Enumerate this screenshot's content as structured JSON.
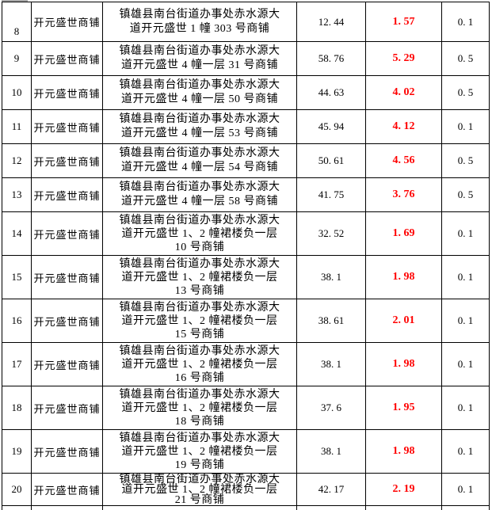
{
  "colors": {
    "price_red": "#ff0000",
    "border_black": "#000000",
    "artifact_grey": "#a9a9a9"
  },
  "table": {
    "shop_name": "开元盛世商铺",
    "rows": [
      {
        "no": "8",
        "address_lines": [
          "镇雄县南台街道办事处赤水源大",
          "道开元盛世 1 幢 303 号商铺"
        ],
        "area": "12. 44",
        "price": "1. 57",
        "rate": "0. 1"
      },
      {
        "no": "9",
        "address_lines": [
          "镇雄县南台街道办事处赤水源大",
          "道开元盛世 4 幢一层 31 号商铺"
        ],
        "area": "58. 76",
        "price": "5. 29",
        "rate": "0. 5"
      },
      {
        "no": "10",
        "address_lines": [
          "镇雄县南台街道办事处赤水源大",
          "道开元盛世 4 幢一层 50 号商铺"
        ],
        "area": "44. 63",
        "price": "4. 02",
        "rate": "0. 5"
      },
      {
        "no": "11",
        "address_lines": [
          "镇雄县南台街道办事处赤水源大",
          "道开元盛世 4 幢一层 53 号商铺"
        ],
        "area": "45. 94",
        "price": "4. 12",
        "rate": "0. 1"
      },
      {
        "no": "12",
        "address_lines": [
          "镇雄县南台街道办事处赤水源大",
          "道开元盛世 4 幢一层 54 号商铺"
        ],
        "area": "50. 61",
        "price": "4. 56",
        "rate": "0. 5"
      },
      {
        "no": "13",
        "address_lines": [
          "镇雄县南台街道办事处赤水源大",
          "道开元盛世 4 幢一层 58 号商铺"
        ],
        "area": "41. 75",
        "price": "3. 76",
        "rate": "0. 5"
      },
      {
        "no": "14",
        "address_lines": [
          "镇雄县南台街道办事处赤水源大",
          "道开元盛世 1、2 幢裙楼负一层",
          "10 号商铺"
        ],
        "area": "32. 52",
        "price": "1. 69",
        "rate": "0. 1"
      },
      {
        "no": "15",
        "address_lines": [
          "镇雄县南台街道办事处赤水源大",
          "道开元盛世 1、2 幢裙楼负一层",
          "13 号商铺"
        ],
        "area": "38. 1",
        "price": "1. 98",
        "rate": "0. 1"
      },
      {
        "no": "16",
        "address_lines": [
          "镇雄县南台街道办事处赤水源大",
          "道开元盛世 1、2 幢裙楼负一层",
          "15 号商铺"
        ],
        "area": "38. 61",
        "price": "2. 01",
        "rate": "0. 1"
      },
      {
        "no": "17",
        "address_lines": [
          "镇雄县南台街道办事处赤水源大",
          "道开元盛世 1、2 幢裙楼负一层",
          "16 号商铺"
        ],
        "area": "38. 1",
        "price": "1. 98",
        "rate": "0. 1"
      },
      {
        "no": "18",
        "address_lines": [
          "镇雄县南台街道办事处赤水源大",
          "道开元盛世 1、2 幢裙楼负一层",
          "18 号商铺"
        ],
        "area": "37. 6",
        "price": "1. 95",
        "rate": "0. 1"
      },
      {
        "no": "19",
        "address_lines": [
          "镇雄县南台街道办事处赤水源大",
          "道开元盛世 1、2 幢裙楼负一层",
          "19 号商铺"
        ],
        "area": "38. 1",
        "price": "1. 98",
        "rate": "0. 1"
      },
      {
        "no": "20",
        "address_lines": [
          "镇雄县南台街道办事处赤水源大",
          "道开元盛世 1、2 幢裙楼负一层",
          "21 号商铺"
        ],
        "area": "42. 17",
        "price": "2. 19",
        "rate": "0. 1"
      }
    ]
  }
}
